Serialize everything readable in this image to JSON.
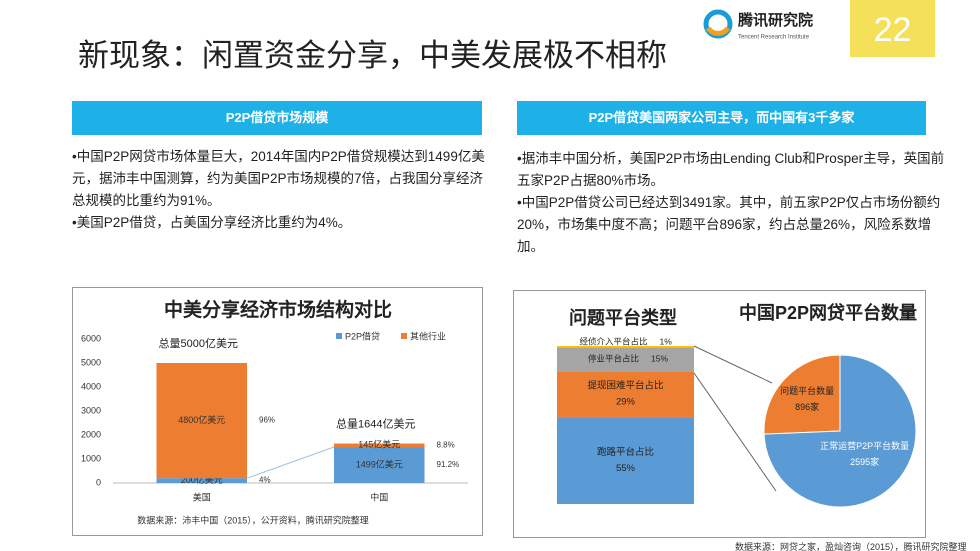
{
  "page_number": "22",
  "logo": {
    "name": "腾讯研究院",
    "subtitle": "Tencent Research Institute"
  },
  "title": "新现象：闲置资金分享，中美发展极不相称",
  "left_panel": {
    "heading": "P2P借贷市场规模",
    "paragraphs": [
      "•中国P2P网贷市场体量巨大，2014年国内P2P借贷规模达到1499亿美元，据沛丰中国测算，约为美国P2P市场规模的7倍，占我国分享经济总规模的比重约为91%。",
      "•美国P2P借贷，占美国分享经济比重约为4%。"
    ]
  },
  "right_panel": {
    "heading": "P2P借贷美国两家公司主导，而中国有3千多家",
    "paragraphs": [
      "•据沛丰中国分析，美国P2P市场由Lending Club和Prosper主导，英国前五家P2P占据80%市场。",
      "•中国P2P借贷公司已经达到3491家。其中，前五家P2P仅占市场份额约20%，市场集中度不高；问题平台896家，约占总量26%，风险系数增加。"
    ]
  },
  "sources": [
    "数据来源：沛丰中国（2015），公开资料，腾讯研究院整理",
    "数据来源：网贷之家，盈灿咨询（2015），腾讯研究院整理"
  ],
  "chart_data": [
    {
      "type": "bar",
      "stacked": true,
      "title": "中美分享经济市场结构对比",
      "categories": [
        "美国",
        "中国"
      ],
      "total_labels": [
        "总量5000亿美元",
        "总量1644亿美元"
      ],
      "series": [
        {
          "name": "P2P借贷",
          "color": "#5b9bd5",
          "values": [
            200,
            1499
          ],
          "value_labels": [
            "200亿美元",
            "1499亿美元"
          ],
          "share_labels": [
            "4%",
            "91.2%"
          ]
        },
        {
          "name": "其他行业",
          "color": "#ed7d31",
          "values": [
            4800,
            145
          ],
          "value_labels": [
            "4800亿美元",
            "145亿美元"
          ],
          "share_labels": [
            "96%",
            "8.8%"
          ]
        }
      ],
      "ylim": [
        0,
        6000
      ],
      "yticks": [
        0,
        1000,
        2000,
        3000,
        4000,
        5000,
        6000
      ],
      "legend": "top-right"
    },
    {
      "type": "stacked-column",
      "title": "问题平台类型",
      "series": [
        {
          "name": "跑路平台占比",
          "color": "#5b9bd5",
          "values": [
            55
          ],
          "value_labels": [
            "55%"
          ]
        },
        {
          "name": "提现困难平台占比",
          "color": "#ed7d31",
          "values": [
            29
          ],
          "value_labels": [
            "29%"
          ]
        },
        {
          "name": "停业平台占比",
          "color": "#a5a5a5",
          "values": [
            15
          ],
          "value_labels": [
            "15%"
          ]
        },
        {
          "name": "经侦介入平台占比",
          "color": "#ffc000",
          "values": [
            1
          ],
          "value_labels": [
            "1%"
          ]
        }
      ]
    },
    {
      "type": "pie",
      "title": "中国P2P网贷平台数量",
      "categories": [
        "问题平台数量",
        "正常运营P2P平台数量"
      ],
      "values": [
        896,
        2595
      ],
      "value_labels": [
        "896家",
        "2595家"
      ],
      "colors": [
        "#ed7d31",
        "#5b9bd5"
      ]
    }
  ]
}
